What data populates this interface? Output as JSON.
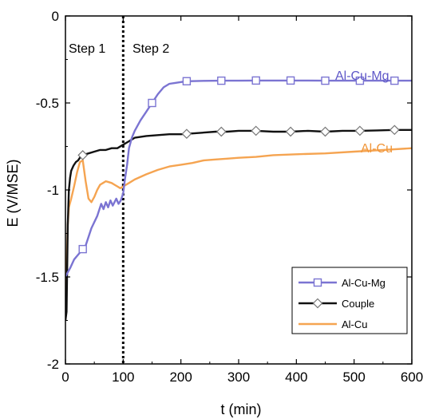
{
  "chart_data": {
    "type": "line",
    "xlabel": "t (min)",
    "ylabel": "E (V/MSE)",
    "xlim": [
      0,
      600
    ],
    "ylim": [
      -2,
      0
    ],
    "x_ticks": [
      "0",
      "100",
      "200",
      "300",
      "400",
      "500",
      "600"
    ],
    "y_ticks": [
      "0",
      "-0.5",
      "-1",
      "-1.5",
      "-2"
    ],
    "grid": false,
    "legend_position": "bottom-right",
    "annotations": {
      "step1": "Step 1",
      "step2": "Step 2",
      "divider_x": 100
    },
    "series": [
      {
        "name": "Al-Cu-Mg",
        "color": "#7b74d2",
        "marker": "square",
        "label_color": "#5f58c8",
        "marker_x": [
          30,
          150,
          210,
          270,
          330,
          390,
          450,
          510,
          570
        ],
        "x": [
          0,
          3,
          8,
          15,
          25,
          35,
          45,
          55,
          62,
          66,
          70,
          74,
          78,
          82,
          88,
          92,
          96,
          100,
          103,
          107,
          110,
          115,
          120,
          130,
          140,
          150,
          160,
          170,
          180,
          190,
          200,
          210,
          240,
          270,
          300,
          330,
          360,
          390,
          420,
          450,
          480,
          510,
          540,
          570,
          600
        ],
        "y": [
          -1.5,
          -1.48,
          -1.45,
          -1.4,
          -1.36,
          -1.32,
          -1.22,
          -1.15,
          -1.08,
          -1.11,
          -1.07,
          -1.1,
          -1.06,
          -1.09,
          -1.05,
          -1.08,
          -1.06,
          -1.02,
          -0.94,
          -0.85,
          -0.76,
          -0.7,
          -0.66,
          -0.6,
          -0.55,
          -0.5,
          -0.45,
          -0.41,
          -0.39,
          -0.385,
          -0.38,
          -0.375,
          -0.373,
          -0.372,
          -0.372,
          -0.371,
          -0.371,
          -0.371,
          -0.371,
          -0.372,
          -0.372,
          -0.372,
          -0.372,
          -0.372,
          -0.372
        ]
      },
      {
        "name": "Couple",
        "color": "#111111",
        "marker": "diamond",
        "label_color": "#000000",
        "marker_x": [
          30,
          210,
          270,
          330,
          390,
          450,
          510,
          570
        ],
        "x": [
          0,
          2,
          4,
          6,
          8,
          10,
          14,
          18,
          22,
          26,
          30,
          40,
          50,
          60,
          70,
          80,
          90,
          100,
          110,
          120,
          140,
          160,
          180,
          200,
          220,
          240,
          260,
          280,
          300,
          330,
          360,
          390,
          420,
          450,
          480,
          510,
          540,
          570,
          600
        ],
        "y": [
          -1.75,
          -1.7,
          -1.2,
          -1.0,
          -0.93,
          -0.89,
          -0.86,
          -0.84,
          -0.83,
          -0.81,
          -0.8,
          -0.79,
          -0.78,
          -0.77,
          -0.77,
          -0.76,
          -0.76,
          -0.74,
          -0.72,
          -0.7,
          -0.69,
          -0.685,
          -0.68,
          -0.68,
          -0.675,
          -0.67,
          -0.665,
          -0.665,
          -0.66,
          -0.66,
          -0.665,
          -0.665,
          -0.66,
          -0.665,
          -0.66,
          -0.66,
          -0.658,
          -0.655,
          -0.655
        ]
      },
      {
        "name": "Al-Cu",
        "color": "#f5a451",
        "marker": "none",
        "label_color": "#f0963a",
        "marker_x": [],
        "x": [
          0,
          2,
          4,
          6,
          10,
          15,
          20,
          25,
          30,
          35,
          40,
          45,
          50,
          55,
          60,
          65,
          70,
          75,
          80,
          85,
          90,
          95,
          100,
          110,
          120,
          140,
          160,
          180,
          200,
          220,
          240,
          260,
          280,
          300,
          330,
          360,
          400,
          450,
          500,
          550,
          600
        ],
        "y": [
          -1.75,
          -1.45,
          -1.2,
          -1.1,
          -1.05,
          -0.98,
          -0.9,
          -0.84,
          -0.83,
          -0.95,
          -1.05,
          -1.07,
          -1.04,
          -1.0,
          -0.97,
          -0.96,
          -0.95,
          -0.955,
          -0.96,
          -0.97,
          -0.98,
          -0.99,
          -0.98,
          -0.96,
          -0.94,
          -0.91,
          -0.885,
          -0.865,
          -0.855,
          -0.845,
          -0.83,
          -0.825,
          -0.82,
          -0.815,
          -0.81,
          -0.8,
          -0.795,
          -0.79,
          -0.78,
          -0.77,
          -0.76
        ]
      }
    ]
  }
}
